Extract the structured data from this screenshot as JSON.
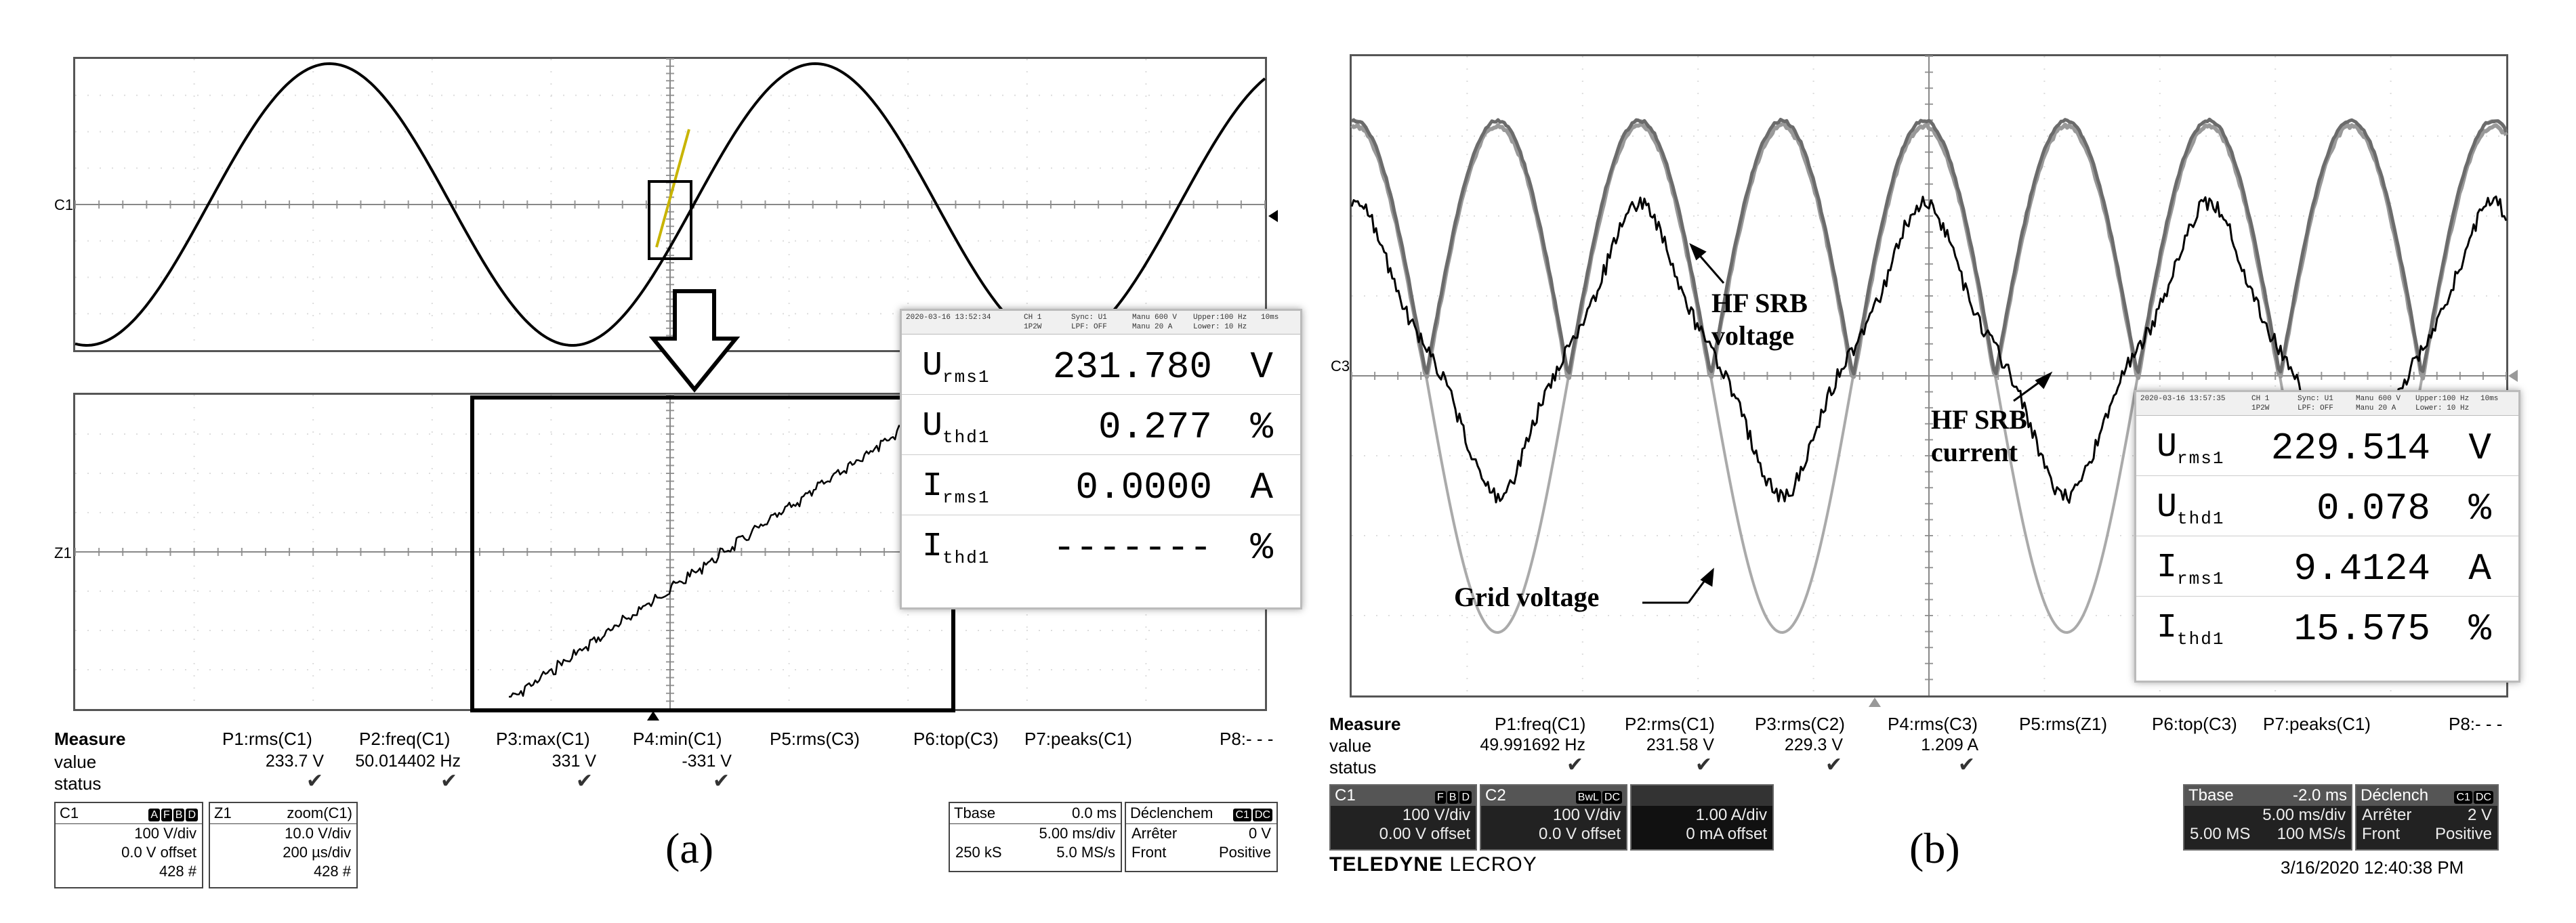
{
  "panel_a": {
    "label": "(a)",
    "channel_markers": {
      "top": "C1",
      "bottom": "Z1"
    },
    "measure": {
      "header": "Measure",
      "row_value": "value",
      "row_status": "status",
      "params": [
        {
          "name": "P1:rms(C1)",
          "value": "233.7 V",
          "status": "✔"
        },
        {
          "name": "P2:freq(C1)",
          "value": "50.014402 Hz",
          "status": "✔"
        },
        {
          "name": "P3:max(C1)",
          "value": "331 V",
          "status": "✔"
        },
        {
          "name": "P4:min(C1)",
          "value": "-331 V",
          "status": "✔"
        },
        {
          "name": "P5:rms(C3)",
          "value": "",
          "status": ""
        },
        {
          "name": "P6:top(C3)",
          "value": "",
          "status": ""
        },
        {
          "name": "P7:peaks(C1)",
          "value": "",
          "status": ""
        },
        {
          "name": "P8:- - -",
          "value": "",
          "status": ""
        }
      ]
    },
    "c1_box": {
      "title": "C1",
      "badges": [
        "A",
        "F",
        "B",
        "D"
      ],
      "vdiv": "100 V/div",
      "offset": "0.0 V offset",
      "count": "428 #"
    },
    "z1_box": {
      "title": "Z1",
      "subtitle": "zoom(C1)",
      "vdiv": "10.0 V/div",
      "tdiv": "200 µs/div",
      "count": "428 #"
    },
    "tbase": {
      "title": "Tbase",
      "offset": "0.0 ms",
      "tdiv": "5.00 ms/div",
      "samples": "250 kS",
      "rate": "5.0 MS/s"
    },
    "trigger": {
      "title": "Déclenchem",
      "badges": [
        "C1",
        "DC"
      ],
      "mode_label": "Arrêter",
      "level": "0 V",
      "edge_label": "Front",
      "slope": "Positive"
    },
    "power": {
      "header": {
        "date": "2020-03-16 13:52:34",
        "ch": "CH 1",
        "range": "1P2W",
        "sync": "Sync: U1",
        "lpf": "LPF: OFF",
        "manu_v": "Manu 600 V",
        "manu_a": "Manu 20 A",
        "upper": "Upper:100 Hz",
        "lower": "Lower: 10 Hz",
        "time": "10ms"
      },
      "rows": [
        {
          "sym": "U",
          "sub": "rms1",
          "value": "231.780",
          "unit": "V"
        },
        {
          "sym": "U",
          "sub": "thd1",
          "value": "0.277",
          "unit": "%"
        },
        {
          "sym": "I",
          "sub": "rms1",
          "value": "0.0000",
          "unit": "A"
        },
        {
          "sym": "I",
          "sub": "thd1",
          "value": "-------",
          "unit": "%"
        }
      ]
    }
  },
  "panel_b": {
    "label": "(b)",
    "channel_marker": "C3",
    "annotations": {
      "hf_srb_voltage": [
        "HF SRB",
        "voltage"
      ],
      "hf_srb_current": [
        "HF SRB",
        "current"
      ],
      "grid_voltage": "Grid voltage"
    },
    "measure": {
      "header": "Measure",
      "row_value": "value",
      "row_status": "status",
      "params": [
        {
          "name": "P1:freq(C1)",
          "value": "49.991692 Hz",
          "status": "✔"
        },
        {
          "name": "P2:rms(C1)",
          "value": "231.58 V",
          "status": "✔"
        },
        {
          "name": "P3:rms(C2)",
          "value": "229.3 V",
          "status": "✔"
        },
        {
          "name": "P4:rms(C3)",
          "value": "1.209 A",
          "status": "✔"
        },
        {
          "name": "P5:rms(Z1)",
          "value": "",
          "status": ""
        },
        {
          "name": "P6:top(C3)",
          "value": "",
          "status": ""
        },
        {
          "name": "P7:peaks(C1)",
          "value": "",
          "status": ""
        },
        {
          "name": "P8:- - -",
          "value": "",
          "status": ""
        }
      ]
    },
    "c1_box": {
      "title": "C1",
      "badges": [
        "F",
        "B",
        "D"
      ],
      "vdiv": "100 V/div",
      "offset": "0.00 V offset"
    },
    "c2_box": {
      "title": "C2",
      "badges": [
        "BwL",
        "DC"
      ],
      "vdiv": "100 V/div",
      "offset": "0.0 V offset"
    },
    "c3_box": {
      "title": "",
      "vdiv": "1.00 A/div",
      "offset": "0 mA offset"
    },
    "tbase": {
      "title": "Tbase",
      "offset": "-2.0 ms",
      "tdiv": "5.00 ms/div",
      "samples": "5.00 MS",
      "rate": "100 MS/s"
    },
    "trigger": {
      "title": "Déclench",
      "badges": [
        "C1",
        "DC"
      ],
      "mode_label": "Arrêter",
      "level": "2 V",
      "edge_label": "Front",
      "slope": "Positive"
    },
    "brand_bold": "TELEDYNE",
    "brand_light": "LECROY",
    "timestamp": "3/16/2020 12:40:38 PM",
    "power": {
      "header": {
        "date": "2020-03-16 13:57:35",
        "ch": "CH 1",
        "range": "1P2W",
        "sync": "Sync: U1",
        "lpf": "LPF: OFF",
        "manu_v": "Manu 600 V",
        "manu_a": "Manu 20 A",
        "upper": "Upper:100 Hz",
        "lower": "Lower: 10 Hz",
        "time": "10ms"
      },
      "rows": [
        {
          "sym": "U",
          "sub": "rms1",
          "value": "229.514",
          "unit": "V"
        },
        {
          "sym": "U",
          "sub": "thd1",
          "value": "0.078",
          "unit": "%"
        },
        {
          "sym": "I",
          "sub": "rms1",
          "value": "9.4124",
          "unit": "A"
        },
        {
          "sym": "I",
          "sub": "thd1",
          "value": "15.575",
          "unit": "%"
        }
      ]
    }
  }
}
